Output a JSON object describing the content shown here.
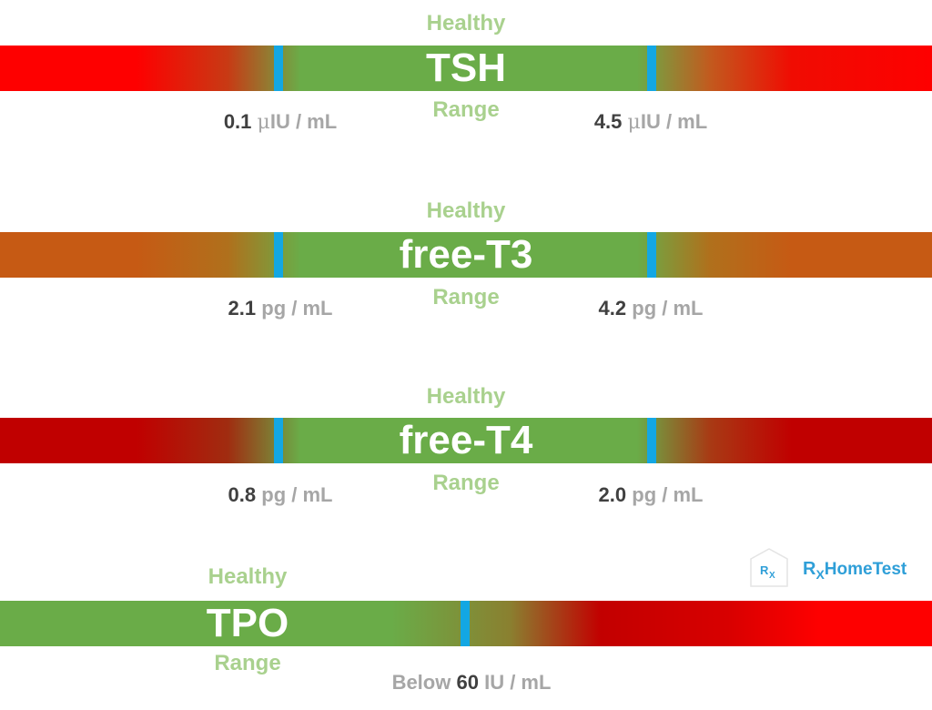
{
  "colors": {
    "healthy_green": "#6aac48",
    "marker_blue": "#13a7e3",
    "label_green": "#a9d18e",
    "number_dark": "#404040",
    "unit_gray": "#a6a6a6"
  },
  "tsh": {
    "healthy": "Healthy",
    "name": "TSH",
    "range": "Range",
    "low_value": "0.1",
    "low_mu": "μ",
    "low_unit": "IU / mL",
    "high_value": "4.5",
    "high_mu": "μ",
    "high_unit": "IU / mL"
  },
  "t3": {
    "healthy": "Healthy",
    "name": "free-T3",
    "range": "Range",
    "low_value": "2.1",
    "low_unit": "pg / mL",
    "high_value": "4.2",
    "high_unit": "pg / mL"
  },
  "t4": {
    "healthy": "Healthy",
    "name": "free-T4",
    "range": "Range",
    "low_value": "0.8",
    "low_unit": "pg / mL",
    "high_value": "2.0",
    "high_unit": "pg / mL"
  },
  "tpo": {
    "healthy": "Healthy",
    "name": "TPO",
    "range": "Range",
    "limit_prefix": "Below",
    "limit_value": "60",
    "limit_unit": "IU / mL"
  },
  "logo": {
    "icon_r": "R",
    "icon_x": "X",
    "brand_r": "R",
    "brand_x": "X",
    "brand_name": "HomeTest"
  }
}
